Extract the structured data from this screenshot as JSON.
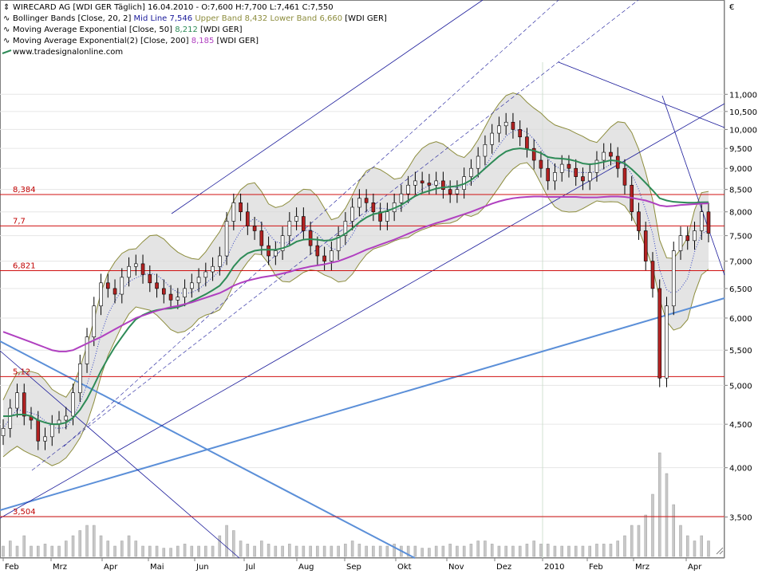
{
  "header": {
    "line1": "WIRECARD AG [WDI GER  Täglich] 16.04.2010 - O:7,600 H:7,700 L:7,461 C:7,550",
    "line2_a": "Bollinger Bands [Close, 20, 2]",
    "line2_b": "Mid Line 7,546",
    "line2_c": "Upper Band 8,432",
    "line2_d": "Lower Band 6,660",
    "line2_e": "[WDI GER]",
    "line3_a": "Moving Average Exponential [Close, 50]",
    "line3_b": "8,212",
    "line3_c": "[WDI GER]",
    "line4_a": "Moving Average Exponential(2) [Close, 200]",
    "line4_b": "8,185",
    "line4_c": "[WDI GER]",
    "line5": "www.tradesignalonline.com",
    "currency": "€"
  },
  "colors": {
    "candle_up": "#ffffff",
    "candle_down": "#b22222",
    "bollinger_band": "#8c8c3c",
    "bollinger_fill": "#d9d9d9",
    "ema50": "#2e8b57",
    "ema200": "#b040c0",
    "hline": "#d01010",
    "trend_blue": "#5b8fd8",
    "channel": "#1a1a9a"
  },
  "chart_data": {
    "type": "candlestick",
    "y_scale": "log",
    "ylim": [
      3.2,
      12
    ],
    "y_ticks": [
      "3,500",
      "4,000",
      "4,500",
      "5,000",
      "5,500",
      "6,000",
      "6,500",
      "7,000",
      "7,500",
      "8,000",
      "8,500",
      "9,000",
      "9,500",
      "10,000",
      "10,500",
      "11,000"
    ],
    "y_tick_values": [
      3.5,
      4.0,
      4.5,
      5.0,
      5.5,
      6.0,
      6.5,
      7.0,
      7.5,
      8.0,
      8.5,
      9.0,
      9.5,
      10.0,
      10.5,
      11.0
    ],
    "x_labels": [
      "Feb",
      "Mrz",
      "Apr",
      "Mai",
      "Jun",
      "Jul",
      "Aug",
      "Sep",
      "Okt",
      "Nov",
      "Dez",
      "2010",
      "Feb",
      "Mrz",
      "Apr"
    ],
    "horizontal_levels": [
      {
        "label": "8,384",
        "value": 8.384
      },
      {
        "label": "7,7",
        "value": 7.7
      },
      {
        "label": "6,821",
        "value": 6.821
      },
      {
        "label": "5,12",
        "value": 5.12
      },
      {
        "label": "3,504",
        "value": 3.504
      }
    ],
    "close": [
      4.45,
      4.7,
      4.9,
      4.6,
      4.55,
      4.3,
      4.35,
      4.5,
      4.55,
      4.6,
      4.9,
      5.3,
      5.7,
      6.2,
      6.6,
      6.5,
      6.4,
      6.7,
      6.9,
      6.95,
      6.75,
      6.6,
      6.5,
      6.4,
      6.3,
      6.35,
      6.5,
      6.6,
      6.7,
      6.8,
      6.9,
      7.1,
      7.8,
      8.2,
      8.0,
      7.7,
      7.6,
      7.3,
      7.1,
      7.2,
      7.5,
      7.8,
      7.9,
      7.6,
      7.3,
      7.1,
      7.0,
      7.2,
      7.5,
      7.8,
      8.1,
      8.3,
      8.2,
      8.0,
      7.8,
      8.0,
      8.2,
      8.4,
      8.6,
      8.7,
      8.65,
      8.6,
      8.7,
      8.5,
      8.4,
      8.5,
      8.8,
      9.0,
      9.3,
      9.6,
      9.9,
      10.1,
      10.2,
      10.0,
      9.8,
      9.5,
      9.2,
      9.0,
      8.7,
      8.9,
      9.1,
      9.0,
      8.8,
      8.7,
      8.9,
      9.2,
      9.4,
      9.3,
      9.0,
      8.6,
      8.0,
      7.6,
      7.0,
      6.5,
      5.1,
      6.2,
      7.2,
      7.5,
      7.4,
      7.6,
      8.0,
      7.55
    ],
    "ema50": [
      4.6,
      4.6,
      4.62,
      4.62,
      4.6,
      4.55,
      4.52,
      4.5,
      4.5,
      4.52,
      4.58,
      4.68,
      4.82,
      5.0,
      5.2,
      5.38,
      5.55,
      5.7,
      5.85,
      5.98,
      6.05,
      6.1,
      6.13,
      6.15,
      6.16,
      6.18,
      6.22,
      6.28,
      6.34,
      6.4,
      6.47,
      6.55,
      6.7,
      6.9,
      7.05,
      7.15,
      7.2,
      7.22,
      7.22,
      7.22,
      7.25,
      7.3,
      7.38,
      7.42,
      7.43,
      7.42,
      7.4,
      7.41,
      7.46,
      7.54,
      7.65,
      7.78,
      7.88,
      7.95,
      7.98,
      8.02,
      8.08,
      8.15,
      8.25,
      8.35,
      8.42,
      8.47,
      8.52,
      8.55,
      8.56,
      8.58,
      8.63,
      8.72,
      8.85,
      9.0,
      9.15,
      9.3,
      9.42,
      9.48,
      9.5,
      9.48,
      9.44,
      9.38,
      9.28,
      9.25,
      9.24,
      9.22,
      9.18,
      9.12,
      9.1,
      9.12,
      9.16,
      9.2,
      9.18,
      9.12,
      8.98,
      8.82,
      8.65,
      8.48,
      8.3,
      8.25,
      8.22,
      8.21,
      8.2,
      8.2,
      8.21,
      8.212
    ],
    "ema200": [
      5.78,
      5.74,
      5.7,
      5.66,
      5.62,
      5.58,
      5.54,
      5.5,
      5.48,
      5.48,
      5.5,
      5.55,
      5.6,
      5.65,
      5.7,
      5.76,
      5.82,
      5.88,
      5.94,
      6.0,
      6.04,
      6.08,
      6.12,
      6.15,
      6.18,
      6.2,
      6.23,
      6.26,
      6.3,
      6.34,
      6.38,
      6.42,
      6.48,
      6.55,
      6.6,
      6.64,
      6.67,
      6.7,
      6.72,
      6.74,
      6.77,
      6.8,
      6.84,
      6.87,
      6.9,
      6.92,
      6.94,
      6.97,
      7.0,
      7.05,
      7.1,
      7.16,
      7.22,
      7.27,
      7.32,
      7.37,
      7.42,
      7.48,
      7.54,
      7.6,
      7.66,
      7.71,
      7.76,
      7.8,
      7.85,
      7.9,
      7.95,
      8.0,
      8.06,
      8.12,
      8.18,
      8.23,
      8.27,
      8.3,
      8.32,
      8.33,
      8.34,
      8.34,
      8.33,
      8.33,
      8.33,
      8.33,
      8.33,
      8.32,
      8.32,
      8.32,
      8.33,
      8.34,
      8.34,
      8.33,
      8.31,
      8.28,
      8.25,
      8.2,
      8.14,
      8.12,
      8.13,
      8.15,
      8.16,
      8.17,
      8.18,
      8.185
    ],
    "volume_relative": [
      0.1,
      0.15,
      0.1,
      0.2,
      0.1,
      0.1,
      0.12,
      0.1,
      0.1,
      0.15,
      0.2,
      0.25,
      0.3,
      0.3,
      0.2,
      0.15,
      0.1,
      0.15,
      0.2,
      0.15,
      0.1,
      0.1,
      0.1,
      0.08,
      0.08,
      0.1,
      0.12,
      0.1,
      0.1,
      0.1,
      0.1,
      0.2,
      0.3,
      0.25,
      0.15,
      0.12,
      0.1,
      0.15,
      0.12,
      0.1,
      0.1,
      0.12,
      0.1,
      0.1,
      0.1,
      0.1,
      0.1,
      0.1,
      0.1,
      0.12,
      0.15,
      0.12,
      0.1,
      0.1,
      0.1,
      0.1,
      0.12,
      0.1,
      0.1,
      0.1,
      0.08,
      0.08,
      0.1,
      0.1,
      0.12,
      0.1,
      0.1,
      0.12,
      0.15,
      0.15,
      0.12,
      0.1,
      0.1,
      0.1,
      0.1,
      0.12,
      0.15,
      0.12,
      0.12,
      0.1,
      0.1,
      0.1,
      0.1,
      0.1,
      0.1,
      0.12,
      0.12,
      0.12,
      0.15,
      0.2,
      0.3,
      0.3,
      0.4,
      0.6,
      1.0,
      0.8,
      0.5,
      0.3,
      0.2,
      0.15,
      0.2,
      0.15
    ]
  }
}
